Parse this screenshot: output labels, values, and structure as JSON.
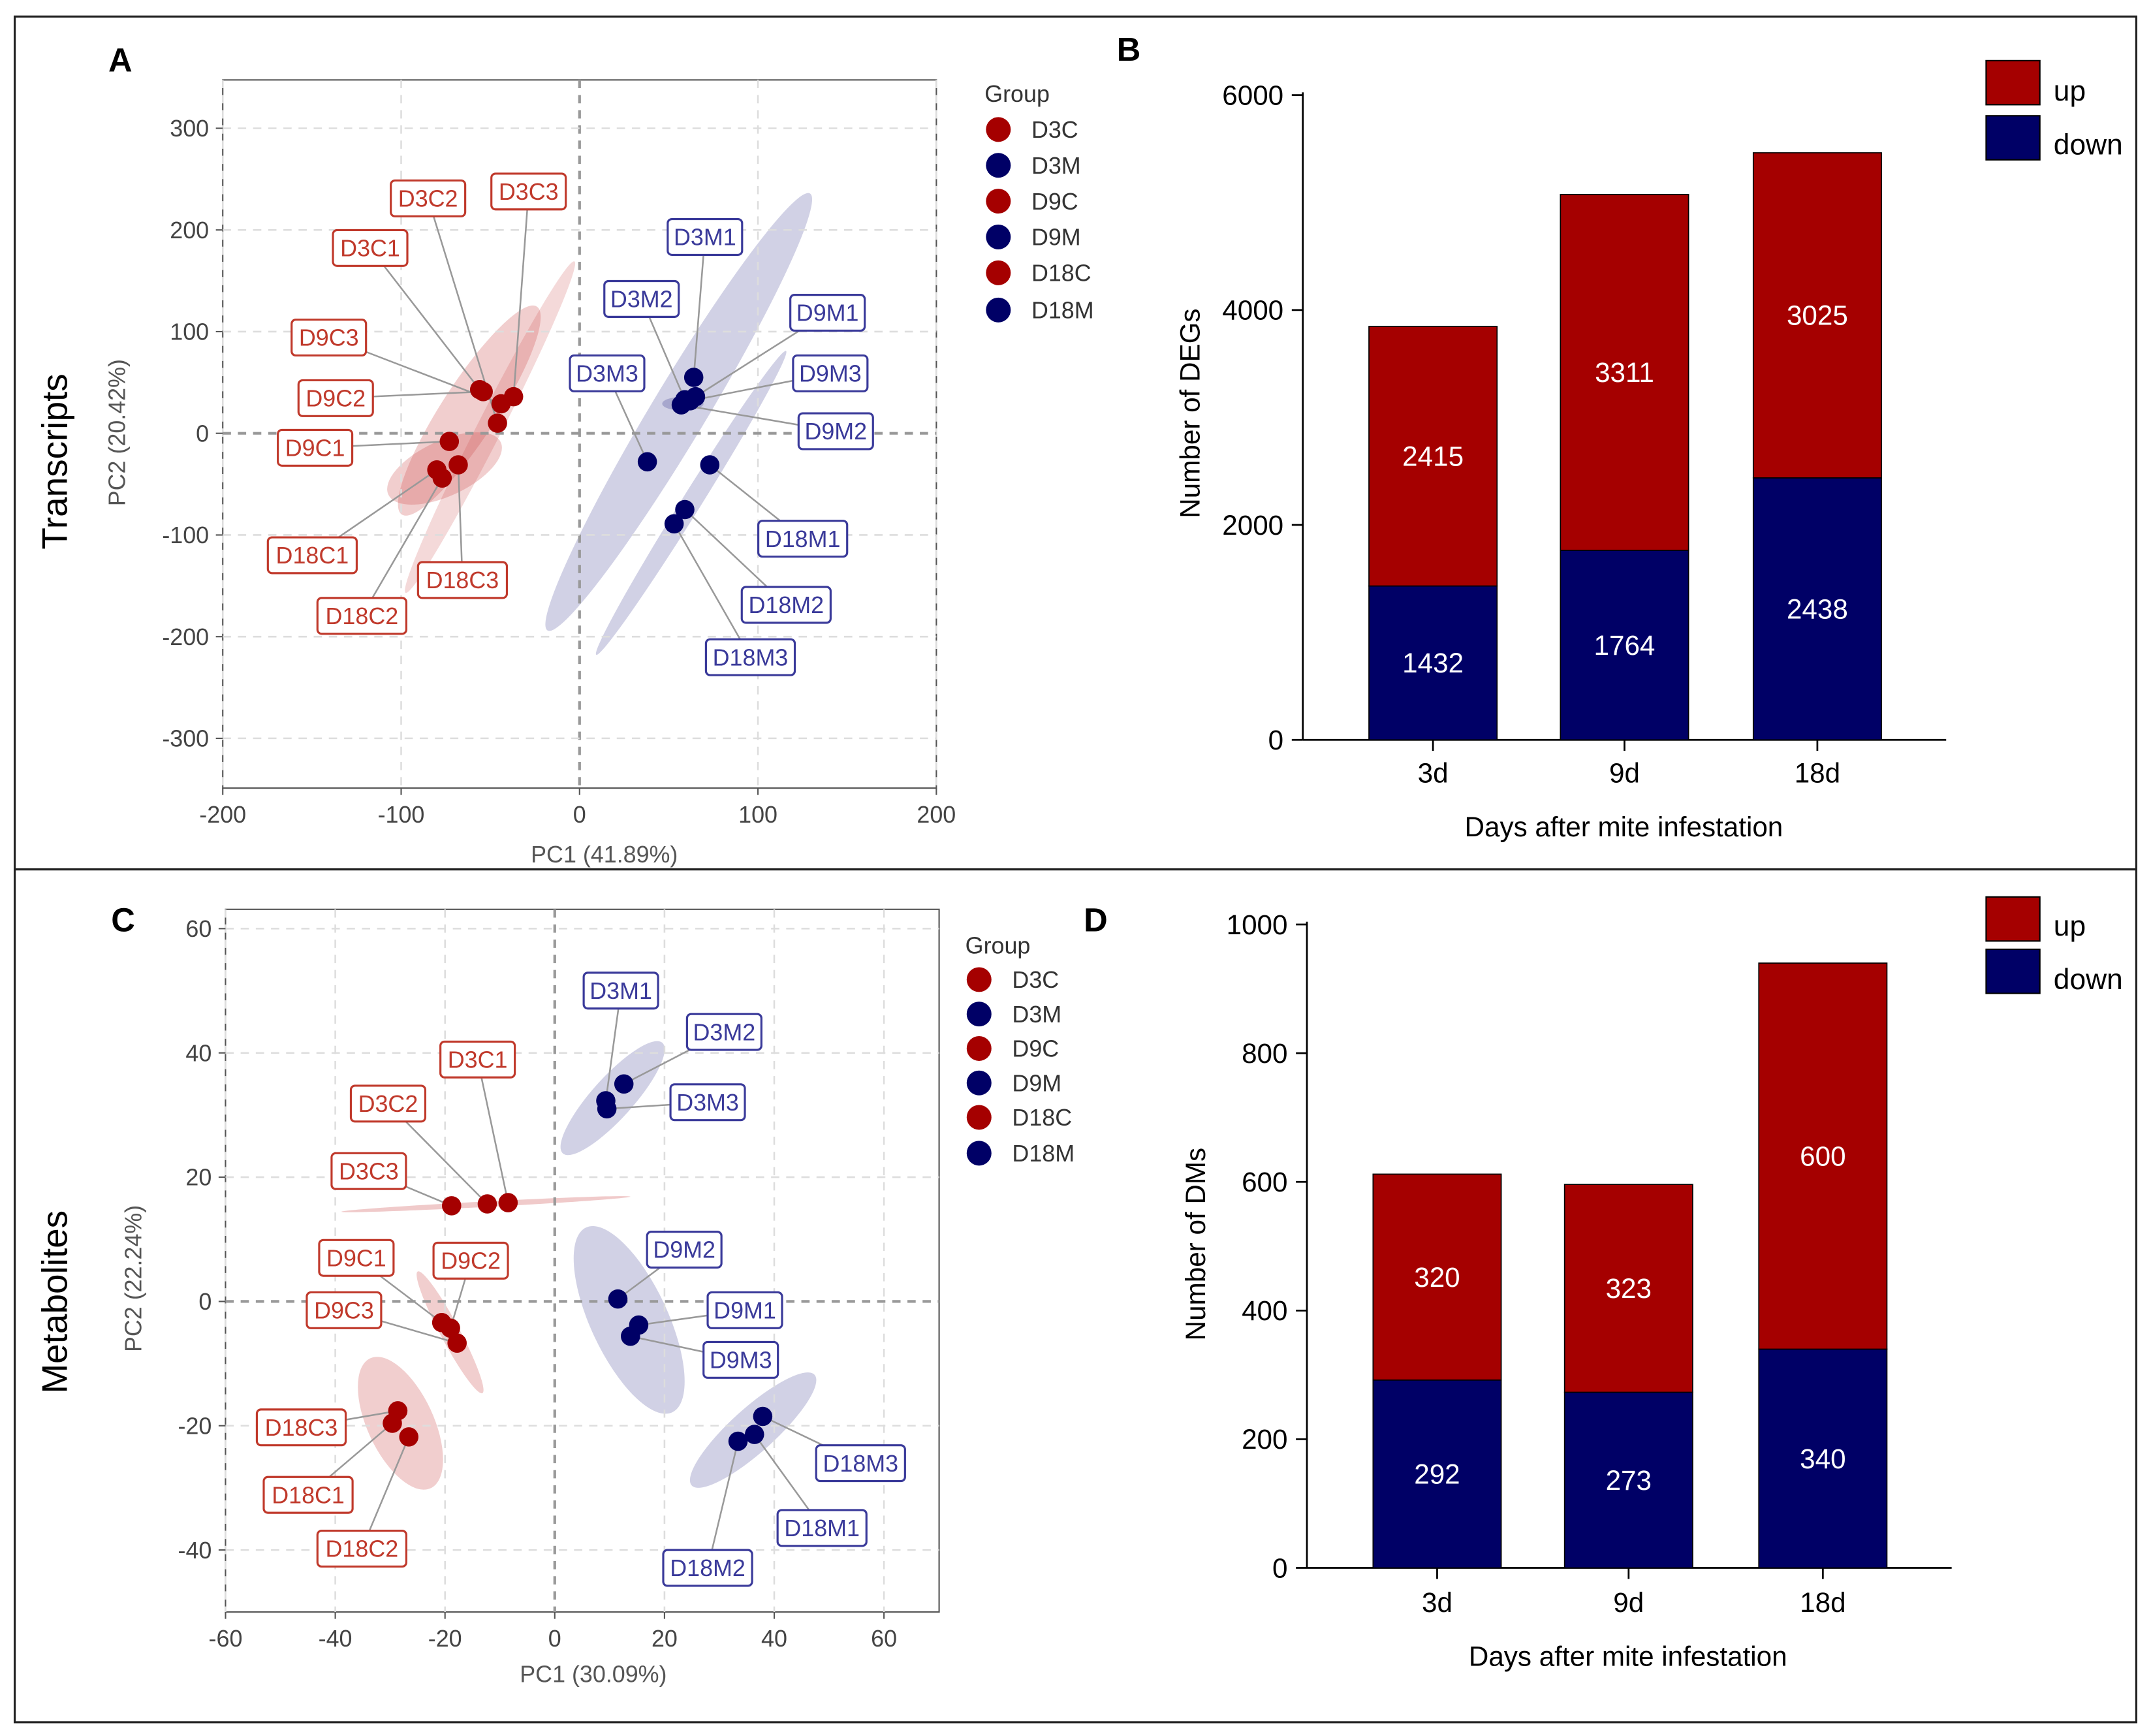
{
  "colors": {
    "control": "#a50000",
    "mite": "#000066",
    "control_label": "#c0392b",
    "mite_label": "#3a3a9a",
    "up": "#a50000",
    "down": "#000066"
  },
  "chart_data": [
    {
      "panel": "A",
      "type": "scatter",
      "row_label": "Transcripts",
      "xlabel": "PC1 (41.89%)",
      "ylabel": "PC2 (20.42%)",
      "xlim": [
        -200,
        200
      ],
      "ylim": [
        -350,
        350
      ],
      "xticks": [
        "-200",
        "-100",
        "0",
        "100",
        "200"
      ],
      "xtick_values": [
        -200,
        -100,
        0,
        100,
        200
      ],
      "yticks": [
        "300",
        "200",
        "100",
        "0",
        "-100",
        "-200",
        "-300"
      ],
      "ytick_values": [
        300,
        200,
        100,
        0,
        -100,
        -200,
        -300
      ],
      "grid": true,
      "legend": {
        "title": "Group",
        "placement": "right",
        "entries": [
          {
            "label": "D3C",
            "group": "control"
          },
          {
            "label": "D3M",
            "group": "mite"
          },
          {
            "label": "D9C",
            "group": "control"
          },
          {
            "label": "D9M",
            "group": "mite"
          },
          {
            "label": "D18C",
            "group": "control"
          },
          {
            "label": "D18M",
            "group": "mite"
          }
        ]
      },
      "points": [
        {
          "label": "D3C1",
          "group": "control",
          "x": -56,
          "y": 43
        },
        {
          "label": "D3C2",
          "group": "control",
          "x": -46,
          "y": 10
        },
        {
          "label": "D3C3",
          "group": "control",
          "x": -37,
          "y": 36
        },
        {
          "label": "D9C1",
          "group": "control",
          "x": -73,
          "y": -8
        },
        {
          "label": "D9C2",
          "group": "control",
          "x": -54,
          "y": 41
        },
        {
          "label": "D9C3",
          "group": "control",
          "x": -44,
          "y": 29
        },
        {
          "label": "D18C1",
          "group": "control",
          "x": -80,
          "y": -36
        },
        {
          "label": "D18C2",
          "group": "control",
          "x": -77,
          "y": -44
        },
        {
          "label": "D18C3",
          "group": "control",
          "x": -68,
          "y": -31
        },
        {
          "label": "D3M1",
          "group": "mite",
          "x": 64,
          "y": 55
        },
        {
          "label": "D3M2",
          "group": "mite",
          "x": 59,
          "y": 33
        },
        {
          "label": "D3M3",
          "group": "mite",
          "x": 38,
          "y": -28
        },
        {
          "label": "D9M1",
          "group": "mite",
          "x": 65,
          "y": 36
        },
        {
          "label": "D9M2",
          "group": "mite",
          "x": 57,
          "y": 28
        },
        {
          "label": "D9M3",
          "group": "mite",
          "x": 62,
          "y": 32
        },
        {
          "label": "D18M1",
          "group": "mite",
          "x": 73,
          "y": -31
        },
        {
          "label": "D18M2",
          "group": "mite",
          "x": 59,
          "y": -75
        },
        {
          "label": "D18M3",
          "group": "mite",
          "x": 53,
          "y": -89
        }
      ]
    },
    {
      "panel": "B",
      "type": "bar",
      "stacked": true,
      "xlabel": "Days after mite infestation",
      "ylabel": "Number of DEGs",
      "categories": [
        "3d",
        "9d",
        "18d"
      ],
      "ylim": [
        0,
        6000
      ],
      "yticks": [
        "0",
        "2000",
        "4000",
        "6000"
      ],
      "ytick_values": [
        0,
        2000,
        4000,
        6000
      ],
      "legend": {
        "placement": "top-right",
        "entries": [
          "up",
          "down"
        ]
      },
      "series": [
        {
          "name": "down",
          "values": [
            1432,
            1764,
            2438
          ]
        },
        {
          "name": "up",
          "values": [
            2415,
            3311,
            3025
          ]
        }
      ]
    },
    {
      "panel": "C",
      "type": "scatter",
      "row_label": "Metabolites",
      "xlabel": "PC1 (30.09%)",
      "ylabel": "PC2 (22.24%)",
      "xlim": [
        -60,
        70
      ],
      "ylim": [
        -50,
        62
      ],
      "xticks": [
        "-60",
        "-40",
        "-20",
        "0",
        "20",
        "40",
        "60"
      ],
      "xtick_values": [
        -60,
        -40,
        -20,
        0,
        20,
        40,
        60
      ],
      "yticks": [
        "60",
        "40",
        "20",
        "0",
        "-20",
        "-40"
      ],
      "ytick_values": [
        60,
        40,
        20,
        0,
        -20,
        -40
      ],
      "grid": true,
      "legend": {
        "title": "Group",
        "placement": "right",
        "entries": [
          {
            "label": "D3C",
            "group": "control"
          },
          {
            "label": "D3M",
            "group": "mite"
          },
          {
            "label": "D9C",
            "group": "control"
          },
          {
            "label": "D9M",
            "group": "mite"
          },
          {
            "label": "D18C",
            "group": "control"
          },
          {
            "label": "D18M",
            "group": "mite"
          }
        ]
      },
      "points": [
        {
          "label": "D3C1",
          "group": "control",
          "x": -8.5,
          "y": 15.9
        },
        {
          "label": "D3C2",
          "group": "control",
          "x": -12.3,
          "y": 15.7
        },
        {
          "label": "D3C3",
          "group": "control",
          "x": -18.8,
          "y": 15.4
        },
        {
          "label": "D9C1",
          "group": "control",
          "x": -20.6,
          "y": -3.4
        },
        {
          "label": "D9C2",
          "group": "control",
          "x": -19.0,
          "y": -4.3
        },
        {
          "label": "D9C3",
          "group": "control",
          "x": -17.8,
          "y": -6.7
        },
        {
          "label": "D18C1",
          "group": "control",
          "x": -29.6,
          "y": -19.6
        },
        {
          "label": "D18C2",
          "group": "control",
          "x": -26.6,
          "y": -21.8
        },
        {
          "label": "D18C3",
          "group": "control",
          "x": -28.6,
          "y": -17.6
        },
        {
          "label": "D3M1",
          "group": "mite",
          "x": 9.3,
          "y": 32.3
        },
        {
          "label": "D3M2",
          "group": "mite",
          "x": 12.6,
          "y": 35.0
        },
        {
          "label": "D3M3",
          "group": "mite",
          "x": 9.5,
          "y": 31.0
        },
        {
          "label": "D9M1",
          "group": "mite",
          "x": 15.3,
          "y": -3.8
        },
        {
          "label": "D9M2",
          "group": "mite",
          "x": 11.5,
          "y": 0.4
        },
        {
          "label": "D9M3",
          "group": "mite",
          "x": 13.8,
          "y": -5.6
        },
        {
          "label": "D18M1",
          "group": "mite",
          "x": 36.4,
          "y": -21.4
        },
        {
          "label": "D18M2",
          "group": "mite",
          "x": 33.4,
          "y": -22.5
        },
        {
          "label": "D18M3",
          "group": "mite",
          "x": 37.9,
          "y": -18.5
        }
      ]
    },
    {
      "panel": "D",
      "type": "bar",
      "stacked": true,
      "xlabel": "Days after mite infestation",
      "ylabel": "Number of DMs",
      "categories": [
        "3d",
        "9d",
        "18d"
      ],
      "ylim": [
        0,
        1000
      ],
      "yticks": [
        "0",
        "200",
        "400",
        "600",
        "800",
        "1000"
      ],
      "ytick_values": [
        0,
        200,
        400,
        600,
        800,
        1000
      ],
      "legend": {
        "placement": "top-right",
        "entries": [
          "up",
          "down"
        ]
      },
      "series": [
        {
          "name": "down",
          "values": [
            292,
            273,
            340
          ]
        },
        {
          "name": "up",
          "values": [
            320,
            323,
            600
          ]
        }
      ]
    }
  ]
}
